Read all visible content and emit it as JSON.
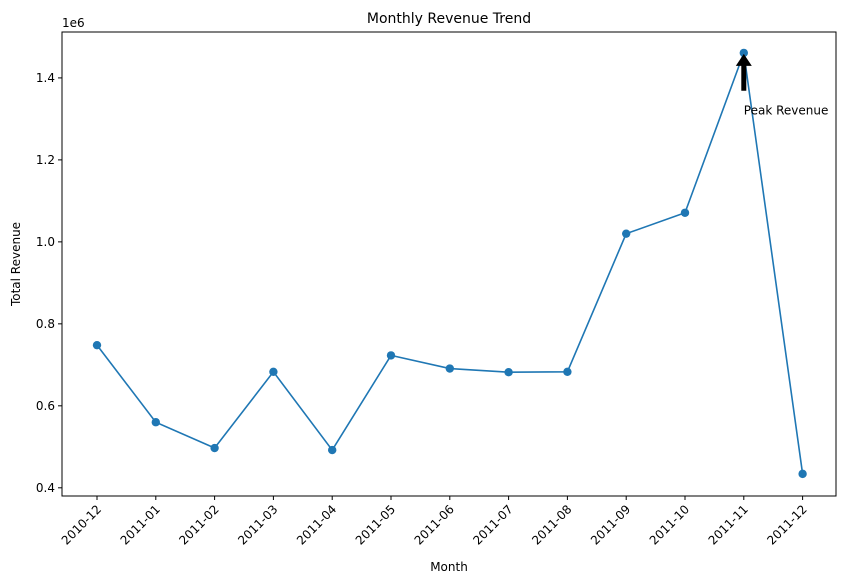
{
  "chart_data": {
    "type": "line",
    "title": "Monthly Revenue Trend",
    "xlabel": "Month",
    "ylabel": "Total Revenue",
    "y_offset_label": "1e6",
    "categories": [
      "2010-12",
      "2011-01",
      "2011-02",
      "2011-03",
      "2011-04",
      "2011-05",
      "2011-06",
      "2011-07",
      "2011-08",
      "2011-09",
      "2011-10",
      "2011-11",
      "2011-12"
    ],
    "series": [
      {
        "values": [
          748000,
          560000,
          497000,
          683000,
          492000,
          723000,
          691000,
          682000,
          683000,
          1020000,
          1071000,
          1461000,
          434000
        ],
        "color": "#1f77b4",
        "marker": "circle"
      }
    ],
    "ylim": [
      380000,
      1512000
    ],
    "yticks": [
      400000,
      600000,
      800000,
      1000000,
      1200000,
      1400000
    ],
    "ytick_labels": [
      "0.4",
      "0.6",
      "0.8",
      "1.0",
      "1.2",
      "1.4"
    ],
    "grid": false,
    "annotations": [
      {
        "text": "Peak Revenue",
        "target_index": 11,
        "target_value": 1461000,
        "text_value": 1320000,
        "arrow": true
      }
    ]
  }
}
